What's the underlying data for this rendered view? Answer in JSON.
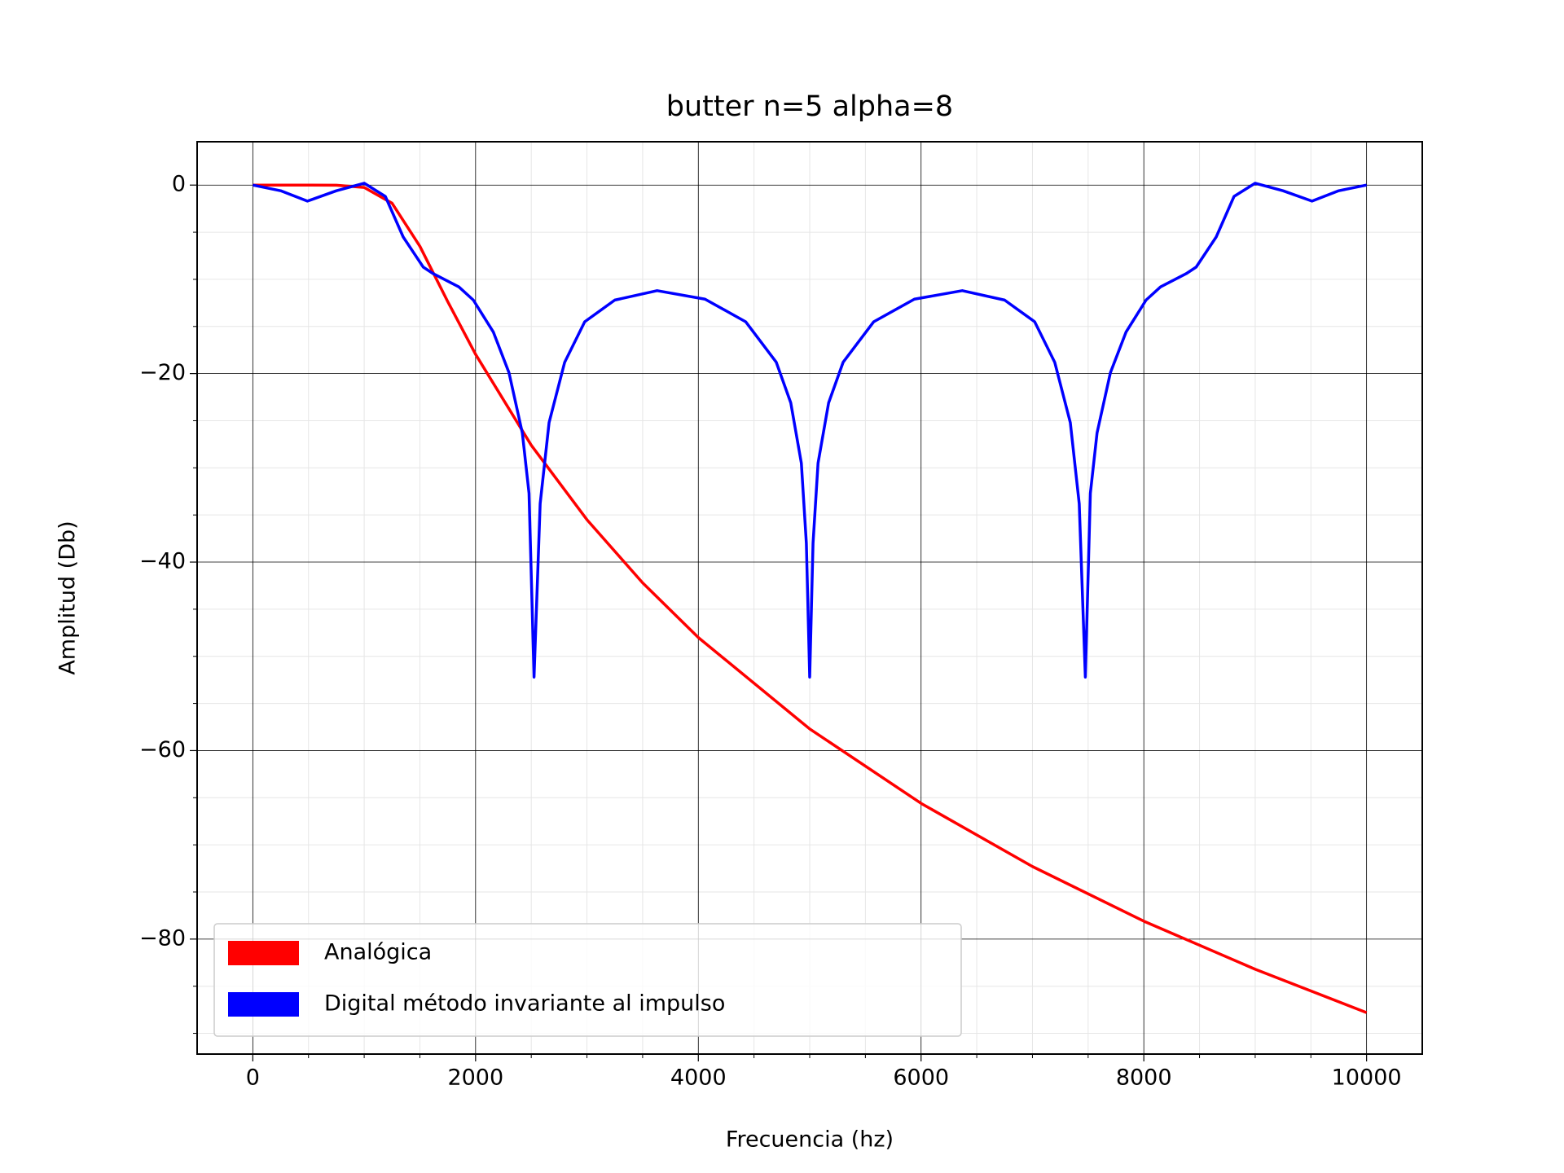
{
  "chart_data": {
    "type": "line",
    "title": "butter n=5 alpha=8",
    "xlabel": "Frecuencia (hz)",
    "ylabel": "Amplitud (Db)",
    "xlim": [
      -500,
      10500
    ],
    "ylim": [
      -92.2,
      4.6
    ],
    "xticks": [
      0,
      2000,
      4000,
      6000,
      8000,
      10000
    ],
    "yticks": [
      {
        "value": -80,
        "label": "−80"
      },
      {
        "value": -60,
        "label": "−60"
      },
      {
        "value": -40,
        "label": "−40"
      },
      {
        "value": -20,
        "label": "−20"
      },
      0
    ],
    "xminorticks": [
      500,
      1000,
      1500,
      2500,
      3000,
      3500,
      4500,
      5000,
      5500,
      6500,
      7000,
      7500,
      8500,
      9000,
      9500
    ],
    "yminorticks": [
      -90,
      -85,
      -75,
      -70,
      -65,
      -55,
      -50,
      -45,
      -35,
      -30,
      -25,
      -15,
      -10,
      -5
    ],
    "grid": true,
    "legend_position": "lower left",
    "series": [
      {
        "name": "Analógica",
        "color": "#ff0000",
        "x": [
          0,
          250,
          500,
          750,
          1000,
          1250,
          1500,
          1750,
          2000,
          2500,
          3000,
          3500,
          4000,
          5000,
          6000,
          7000,
          8000,
          9000,
          10000
        ],
        "values": [
          0,
          0,
          0,
          -0.01,
          -0.25,
          -1.92,
          -6.49,
          -12.36,
          -17.95,
          -27.6,
          -35.5,
          -42.2,
          -48.0,
          -57.7,
          -65.6,
          -72.3,
          -78.1,
          -83.2,
          -87.8
        ]
      },
      {
        "name": "Digital método invariante al impulso",
        "color": "#0000ff",
        "x": [
          0,
          250,
          490,
          750,
          1000,
          1190,
          1350,
          1530,
          1620,
          1850,
          1980,
          2160,
          2300,
          2420,
          2480,
          2525,
          2580,
          2660,
          2800,
          2980,
          3250,
          3630,
          4060,
          4425,
          4700,
          4830,
          4925,
          4970,
          5000,
          5030,
          5075,
          5170,
          5300,
          5575,
          5940,
          6370,
          6750,
          7020,
          7200,
          7340,
          7420,
          7475,
          7520,
          7580,
          7700,
          7840,
          8020,
          8150,
          8380,
          8470,
          8650,
          8810,
          9000,
          9250,
          9510,
          9750,
          10000
        ],
        "values": [
          0,
          -0.6,
          -1.7,
          -0.6,
          0.2,
          -1.2,
          -5.5,
          -8.7,
          -9.4,
          -10.8,
          -12.2,
          -15.6,
          -19.9,
          -26.3,
          -32.7,
          -52.2,
          -33.8,
          -25.2,
          -18.8,
          -14.5,
          -12.2,
          -11.2,
          -12.1,
          -14.5,
          -18.8,
          -23.1,
          -29.5,
          -38,
          -52.2,
          -38,
          -29.5,
          -23.1,
          -18.8,
          -14.5,
          -12.1,
          -11.2,
          -12.2,
          -14.5,
          -18.8,
          -25.2,
          -33.8,
          -52.2,
          -32.7,
          -26.3,
          -19.9,
          -15.6,
          -12.2,
          -10.8,
          -9.4,
          -8.7,
          -5.5,
          -1.2,
          0.2,
          -0.6,
          -1.7,
          -0.6,
          0
        ]
      }
    ]
  }
}
